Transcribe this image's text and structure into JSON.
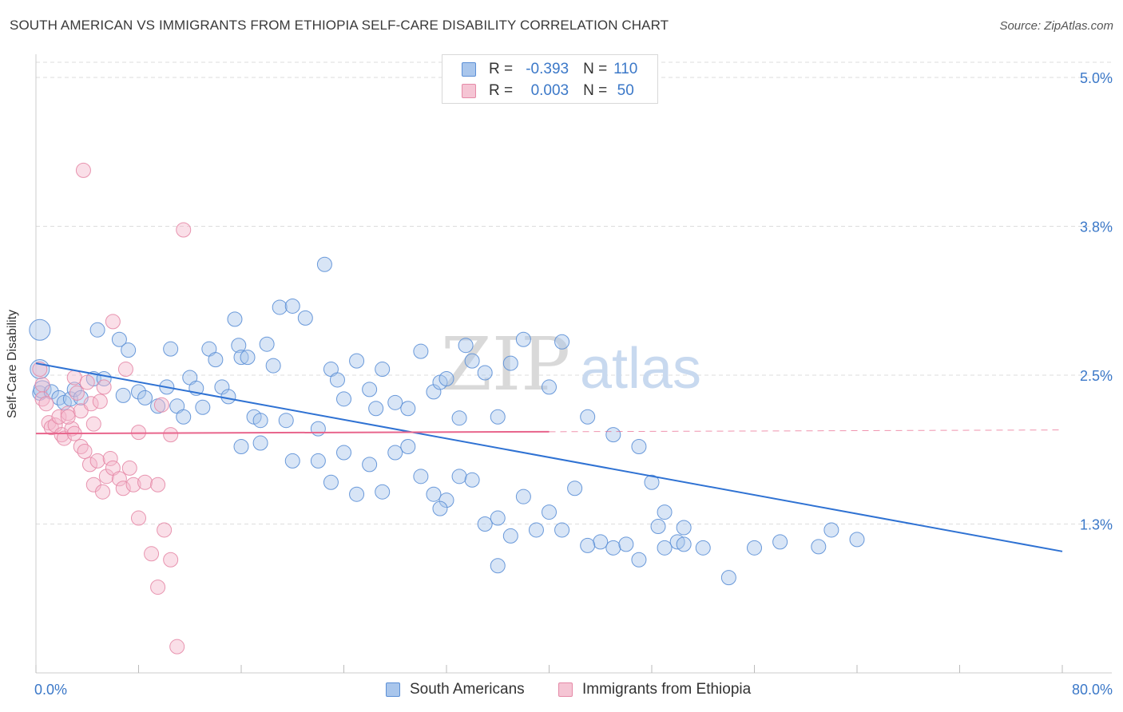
{
  "title": "SOUTH AMERICAN VS IMMIGRANTS FROM ETHIOPIA SELF-CARE DISABILITY CORRELATION CHART",
  "source": "Source: ZipAtlas.com",
  "watermark": {
    "zip": "ZIP",
    "atlas": "atlas"
  },
  "colors": {
    "blue_fill": "#a9c6ec",
    "blue_stroke": "#5b8fd6",
    "blue_line": "#2f72d3",
    "pink_fill": "#f5b9cc",
    "pink_stroke": "#e58aa7",
    "pink_line": "#e8658c",
    "tick_text": "#3b78c8",
    "grid": "#dddddd"
  },
  "legend": {
    "rows": [
      {
        "r_label": "R =",
        "r_value": "-0.393",
        "n_label": "N =",
        "n_value": "110",
        "color": "blue"
      },
      {
        "r_label": "R =",
        "r_value": "0.003",
        "n_label": "N =",
        "n_value": "50",
        "color": "pink"
      }
    ]
  },
  "chart_data": {
    "type": "scatter",
    "title": "SOUTH AMERICAN VS IMMIGRANTS FROM ETHIOPIA SELF-CARE DISABILITY CORRELATION CHART",
    "xlabel": "",
    "ylabel": "Self-Care Disability",
    "xlim": [
      0,
      80
    ],
    "ylim": [
      0,
      5.0
    ],
    "x_tick_labels": [
      "0.0%",
      "80.0%"
    ],
    "y_ticks": [
      {
        "value": 1.25,
        "label": "1.3%"
      },
      {
        "value": 2.5,
        "label": "2.5%"
      },
      {
        "value": 3.75,
        "label": "3.8%"
      },
      {
        "value": 5.0,
        "label": "5.0%"
      }
    ],
    "grid": true,
    "legend_position": "bottom",
    "series": [
      {
        "name": "South Americans",
        "color": "blue",
        "trend": {
          "x": [
            0,
            80
          ],
          "y": [
            2.6,
            1.02
          ],
          "dashed_from": null
        },
        "points": [
          [
            0.3,
            2.88,
            13
          ],
          [
            0.3,
            2.55,
            12
          ],
          [
            0.3,
            2.35,
            9
          ],
          [
            0.5,
            2.38,
            11
          ],
          [
            1.2,
            2.36,
            9
          ],
          [
            1.8,
            2.31,
            9
          ],
          [
            2.2,
            2.27,
            9
          ],
          [
            2.7,
            2.3,
            9
          ],
          [
            3,
            2.38,
            9
          ],
          [
            3.5,
            2.31,
            9
          ],
          [
            4.5,
            2.47,
            9
          ],
          [
            5.3,
            2.47,
            9
          ],
          [
            4.8,
            2.88,
            9
          ],
          [
            6.5,
            2.8,
            9
          ],
          [
            6.8,
            2.33,
            9
          ],
          [
            7.2,
            2.71,
            9
          ],
          [
            8,
            2.36,
            9
          ],
          [
            8.5,
            2.31,
            9
          ],
          [
            9.5,
            2.24,
            9
          ],
          [
            10.2,
            2.4,
            9
          ],
          [
            10.5,
            2.72,
            9
          ],
          [
            11,
            2.24,
            9
          ],
          [
            11.5,
            2.15,
            9
          ],
          [
            12,
            2.48,
            9
          ],
          [
            12.5,
            2.39,
            9
          ],
          [
            13,
            2.23,
            9
          ],
          [
            13.5,
            2.72,
            9
          ],
          [
            14,
            2.63,
            9
          ],
          [
            14.5,
            2.4,
            9
          ],
          [
            15,
            2.32,
            9
          ],
          [
            15.5,
            2.97,
            9
          ],
          [
            15.8,
            2.75,
            9
          ],
          [
            16,
            2.65,
            9
          ],
          [
            16.5,
            2.65,
            9
          ],
          [
            17,
            2.15,
            9
          ],
          [
            17.5,
            2.12,
            9
          ],
          [
            18,
            2.76,
            9
          ],
          [
            18.5,
            2.58,
            9
          ],
          [
            19,
            3.07,
            9
          ],
          [
            19.5,
            2.12,
            9
          ],
          [
            20,
            3.08,
            9
          ],
          [
            21,
            2.98,
            9
          ],
          [
            22,
            2.05,
            9
          ],
          [
            22.5,
            3.43,
            9
          ],
          [
            23,
            2.55,
            9
          ],
          [
            23.5,
            2.46,
            9
          ],
          [
            24,
            2.3,
            9
          ],
          [
            25,
            2.62,
            9
          ],
          [
            26,
            2.38,
            9
          ],
          [
            26.5,
            2.22,
            9
          ],
          [
            27,
            2.55,
            9
          ],
          [
            28,
            2.27,
            9
          ],
          [
            29,
            2.22,
            9
          ],
          [
            30,
            2.7,
            9
          ],
          [
            31,
            2.36,
            9
          ],
          [
            31.5,
            2.44,
            9
          ],
          [
            32,
            2.47,
            9
          ],
          [
            33,
            2.14,
            9
          ],
          [
            33.5,
            2.75,
            9
          ],
          [
            34,
            2.62,
            9
          ],
          [
            35,
            2.52,
            9
          ],
          [
            36,
            2.15,
            9
          ],
          [
            37,
            2.6,
            9
          ],
          [
            38,
            2.8,
            9
          ],
          [
            40,
            2.4,
            9
          ],
          [
            41,
            2.78,
            9
          ],
          [
            43,
            2.15,
            9
          ],
          [
            45,
            2.0,
            9
          ],
          [
            47,
            1.9,
            9
          ],
          [
            48,
            1.6,
            9
          ],
          [
            49,
            1.35,
            9
          ],
          [
            50,
            1.1,
            9
          ],
          [
            16,
            1.9,
            9
          ],
          [
            17.5,
            1.93,
            9
          ],
          [
            20,
            1.78,
            9
          ],
          [
            22,
            1.78,
            9
          ],
          [
            23,
            1.6,
            9
          ],
          [
            24,
            1.85,
            9
          ],
          [
            25,
            1.5,
            9
          ],
          [
            26,
            1.75,
            9
          ],
          [
            27,
            1.52,
            9
          ],
          [
            28,
            1.85,
            9
          ],
          [
            29,
            1.9,
            9
          ],
          [
            30,
            1.65,
            9
          ],
          [
            31,
            1.5,
            9
          ],
          [
            32,
            1.45,
            9
          ],
          [
            33,
            1.65,
            9
          ],
          [
            35,
            1.25,
            9
          ],
          [
            36,
            1.3,
            9
          ],
          [
            37,
            1.15,
            9
          ],
          [
            38,
            1.48,
            9
          ],
          [
            39,
            1.2,
            9
          ],
          [
            40,
            1.35,
            9
          ],
          [
            41,
            1.2,
            9
          ],
          [
            42,
            1.55,
            9
          ],
          [
            44,
            1.1,
            9
          ],
          [
            45,
            1.05,
            9
          ],
          [
            46,
            1.08,
            9
          ],
          [
            47,
            0.95,
            9
          ],
          [
            49,
            1.05,
            9
          ],
          [
            50.5,
            1.22,
            9
          ],
          [
            52,
            1.05,
            9
          ],
          [
            54,
            0.8,
            9
          ],
          [
            56,
            1.05,
            9
          ],
          [
            58,
            1.1,
            9
          ],
          [
            61,
            1.06,
            9
          ],
          [
            62,
            1.2,
            9
          ],
          [
            64,
            1.12,
            9
          ],
          [
            31.5,
            1.38,
            9
          ],
          [
            34,
            1.62,
            9
          ],
          [
            36,
            0.9,
            9
          ],
          [
            43,
            1.07,
            9
          ],
          [
            48.5,
            1.23,
            9
          ],
          [
            50.5,
            1.08,
            9
          ]
        ]
      },
      {
        "name": "Immigrants from Ethiopia",
        "color": "pink",
        "trend": {
          "x": [
            0,
            80
          ],
          "y": [
            2.01,
            2.04
          ],
          "dashed_from": 40
        },
        "points": [
          [
            0.3,
            2.55,
            9
          ],
          [
            0.5,
            2.42,
            9
          ],
          [
            0.5,
            2.3,
            9
          ],
          [
            0.8,
            2.26,
            9
          ],
          [
            1,
            2.1,
            9
          ],
          [
            1.2,
            2.06,
            9
          ],
          [
            1.5,
            2.08,
            9
          ],
          [
            1.8,
            2.15,
            9
          ],
          [
            2,
            2.0,
            9
          ],
          [
            2.2,
            1.97,
            9
          ],
          [
            2.5,
            2.18,
            9
          ],
          [
            2.8,
            2.05,
            9
          ],
          [
            3,
            2.48,
            9
          ],
          [
            3.2,
            2.35,
            9
          ],
          [
            3.5,
            2.2,
            9
          ],
          [
            4,
            2.44,
            9
          ],
          [
            4.3,
            2.26,
            9
          ],
          [
            4.5,
            2.09,
            9
          ],
          [
            5,
            2.28,
            9
          ],
          [
            5.3,
            2.4,
            9
          ],
          [
            2.5,
            2.15,
            9
          ],
          [
            3,
            2.01,
            9
          ],
          [
            3.5,
            1.9,
            9
          ],
          [
            3.8,
            1.86,
            9
          ],
          [
            4.2,
            1.75,
            9
          ],
          [
            4.5,
            1.58,
            9
          ],
          [
            4.8,
            1.78,
            9
          ],
          [
            5.2,
            1.52,
            9
          ],
          [
            5.5,
            1.65,
            9
          ],
          [
            5.8,
            1.8,
            9
          ],
          [
            6,
            1.72,
            9
          ],
          [
            6.5,
            1.63,
            9
          ],
          [
            6.8,
            1.55,
            9
          ],
          [
            7.3,
            1.72,
            9
          ],
          [
            7.6,
            1.58,
            9
          ],
          [
            8,
            2.02,
            9
          ],
          [
            8.5,
            1.6,
            9
          ],
          [
            9.5,
            1.58,
            9
          ],
          [
            9.8,
            2.25,
            9
          ],
          [
            10.5,
            2.0,
            9
          ],
          [
            6,
            2.95,
            9
          ],
          [
            7,
            2.55,
            9
          ],
          [
            8,
            1.3,
            9
          ],
          [
            9,
            1.0,
            9
          ],
          [
            9.5,
            0.72,
            9
          ],
          [
            10,
            1.2,
            9
          ],
          [
            10.5,
            0.95,
            9
          ],
          [
            11,
            0.22,
            9
          ],
          [
            11.5,
            3.72,
            9
          ],
          [
            3.7,
            4.22,
            9
          ]
        ]
      }
    ]
  },
  "bottom_legend": [
    {
      "label": "South Americans",
      "color": "blue"
    },
    {
      "label": "Immigrants from Ethiopia",
      "color": "pink"
    }
  ]
}
